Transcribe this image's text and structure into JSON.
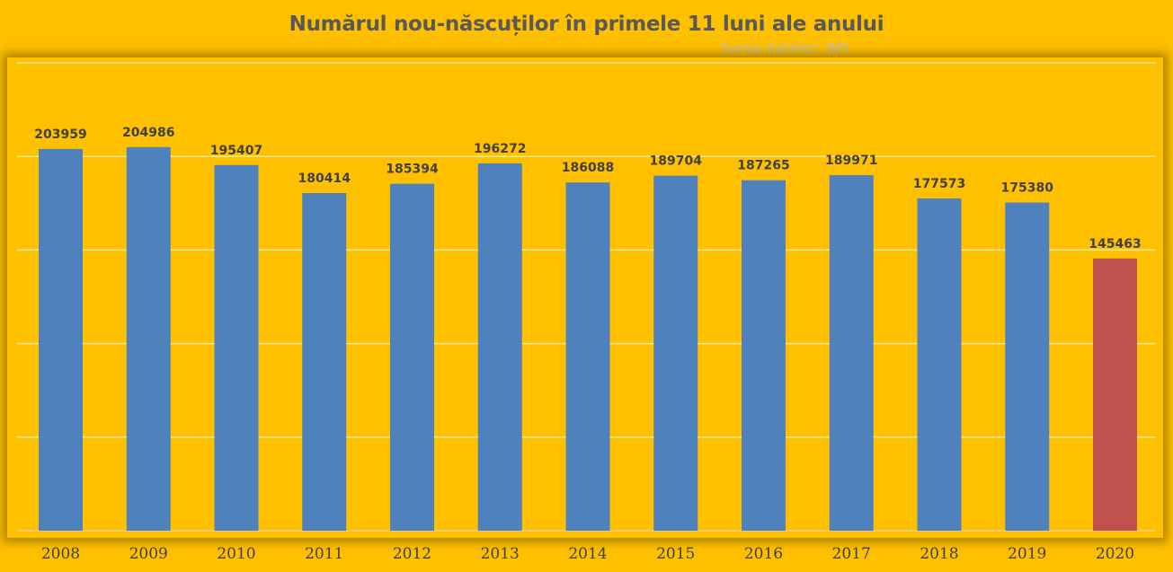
{
  "chart_data": {
    "type": "bar",
    "title": "Numărul nou-născuților în primele 11 luni ale anului",
    "subtitle": "Sursa datelor: INS",
    "categories": [
      "2008",
      "2009",
      "2010",
      "2011",
      "2012",
      "2013",
      "2014",
      "2015",
      "2016",
      "2017",
      "2018",
      "2019",
      "2020"
    ],
    "series": [
      {
        "values": [
          203959,
          204986,
          195407,
          180414,
          185394,
          196272,
          186088,
          189704,
          187265,
          189971,
          177573,
          175380,
          145463
        ]
      }
    ],
    "ylim": [
      0,
      250000
    ],
    "grid": true,
    "data_labels": true,
    "colors": {
      "bar": "#4F81BD",
      "highlight_bar": "#C0504D",
      "background": "#FFC000",
      "gridline": "#FFE699"
    },
    "highlight_category": "2020"
  }
}
